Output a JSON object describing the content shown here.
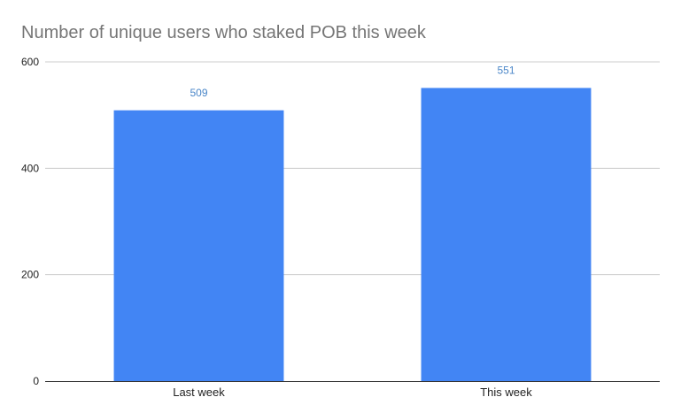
{
  "chart_data": {
    "type": "bar",
    "title": "Number of unique users who staked POB this week",
    "categories": [
      "Last week",
      "This week"
    ],
    "values": [
      509,
      551
    ],
    "data_labels": [
      "509",
      "551"
    ],
    "xlabel": "",
    "ylabel": "",
    "ylim": [
      0,
      600
    ],
    "yticks": [
      0,
      200,
      400,
      600
    ],
    "ytick_labels": [
      "0",
      "200",
      "400",
      "600"
    ],
    "grid": true,
    "legend": "none",
    "bar_color": "#4285f4",
    "data_label_color": "#4a86c8"
  }
}
